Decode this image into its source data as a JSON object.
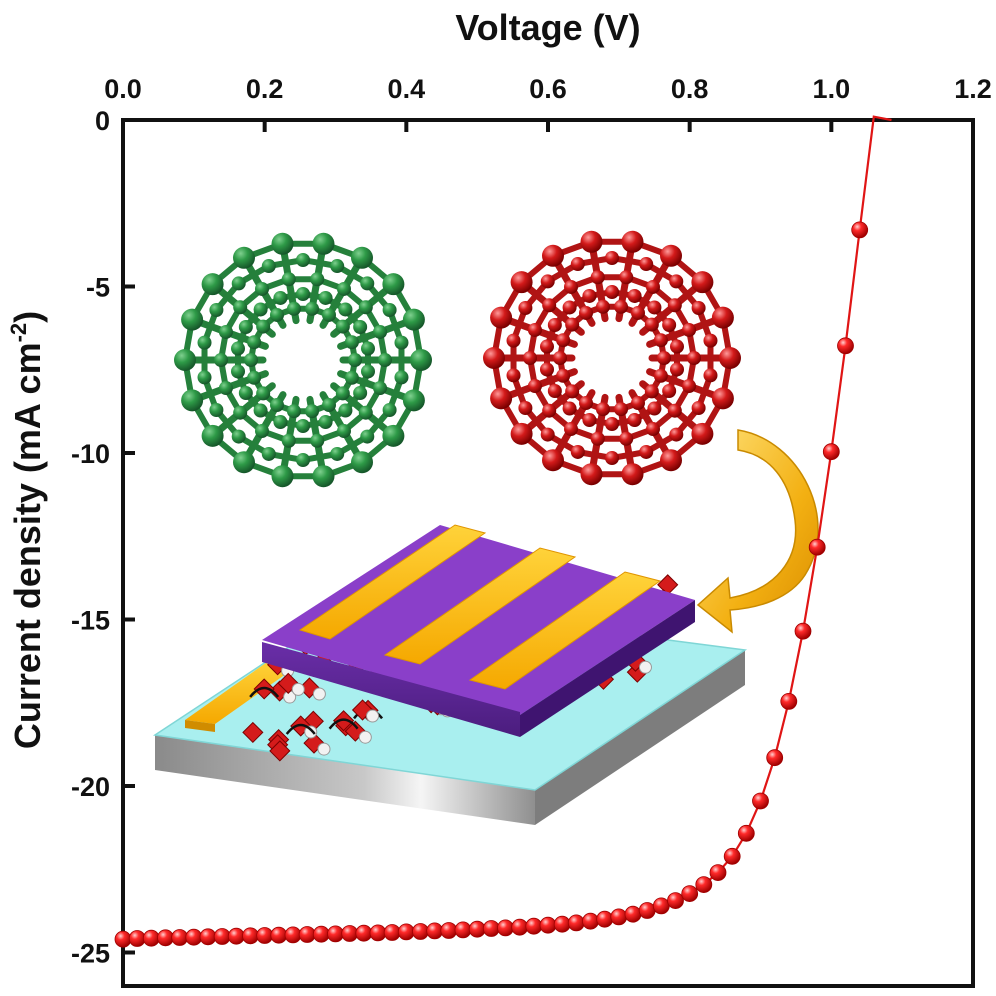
{
  "chart_data": {
    "type": "scatter",
    "xlabel": "Voltage (V)",
    "ylabel": "Current density (mA cm⁻²)",
    "xlim": [
      0.0,
      1.2
    ],
    "ylim": [
      -25.5,
      0
    ],
    "x_axis_position": "top",
    "x_ticks": [
      "0.0",
      "0.2",
      "0.4",
      "0.6",
      "0.8",
      "1.0",
      "1.2"
    ],
    "y_ticks": [
      "0",
      "-5",
      "-10",
      "-15",
      "-20",
      "-25"
    ],
    "grid": false,
    "series": [
      {
        "color": "#e01515",
        "marker": "sphere",
        "line": true,
        "x": [
          0.0,
          0.02,
          0.04,
          0.06,
          0.08,
          0.1,
          0.12,
          0.14,
          0.16,
          0.18,
          0.2,
          0.22,
          0.24,
          0.26,
          0.28,
          0.3,
          0.32,
          0.34,
          0.36,
          0.38,
          0.4,
          0.42,
          0.44,
          0.46,
          0.48,
          0.5,
          0.52,
          0.54,
          0.56,
          0.58,
          0.6,
          0.62,
          0.64,
          0.66,
          0.68,
          0.7,
          0.72,
          0.74,
          0.76,
          0.78,
          0.8,
          0.82,
          0.84,
          0.86,
          0.88,
          0.9,
          0.92,
          0.94,
          0.96,
          0.98,
          1.0,
          1.02,
          1.04,
          1.06
        ],
        "y": [
          -24.6,
          -24.58,
          -24.57,
          -24.56,
          -24.55,
          -24.54,
          -24.53,
          -24.52,
          -24.51,
          -24.5,
          -24.49,
          -24.48,
          -24.47,
          -24.46,
          -24.45,
          -24.44,
          -24.43,
          -24.42,
          -24.41,
          -24.4,
          -24.38,
          -24.37,
          -24.35,
          -24.34,
          -24.32,
          -24.3,
          -24.28,
          -24.26,
          -24.24,
          -24.21,
          -24.18,
          -24.15,
          -24.11,
          -24.06,
          -24.0,
          -23.93,
          -23.85,
          -23.74,
          -23.6,
          -23.44,
          -23.23,
          -22.96,
          -22.6,
          -22.11,
          -21.42,
          -20.45,
          -19.15,
          -17.46,
          -15.35,
          -12.83,
          -9.96,
          -6.78,
          -3.3,
          0.1
        ]
      }
    ],
    "inset_description_free": true
  }
}
